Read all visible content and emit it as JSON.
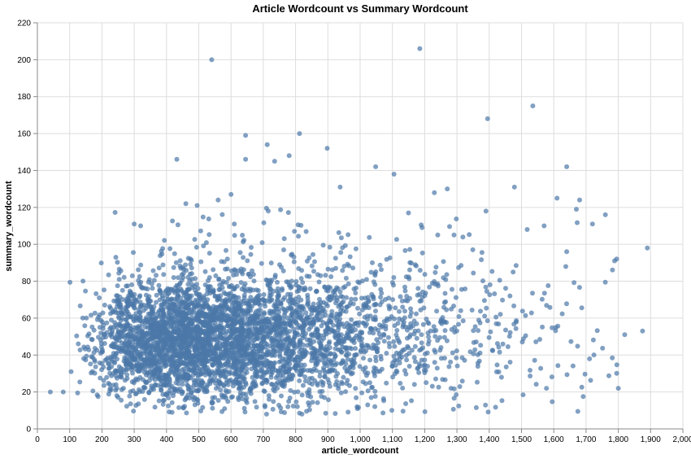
{
  "chart_data": {
    "type": "scatter",
    "title": "Article Wordcount vs Summary Wordcount",
    "xlabel": "article_wordcount",
    "ylabel": "summary_wordcount",
    "xlim": [
      0,
      2000
    ],
    "ylim": [
      0,
      220
    ],
    "x_ticks": [
      0,
      100,
      200,
      300,
      400,
      500,
      600,
      700,
      800,
      900,
      1000,
      1100,
      1200,
      1300,
      1400,
      1500,
      1600,
      1700,
      1800,
      1900,
      2000
    ],
    "x_tick_labels": [
      "0",
      "100",
      "200",
      "300",
      "400",
      "500",
      "600",
      "700",
      "800",
      "900",
      "1,000",
      "1,100",
      "1,200",
      "1,300",
      "1,400",
      "1,500",
      "1,600",
      "1,700",
      "1,800",
      "1,900",
      "2,000"
    ],
    "y_ticks": [
      0,
      20,
      40,
      60,
      80,
      100,
      120,
      140,
      160,
      180,
      200,
      220
    ],
    "y_tick_labels": [
      "0",
      "20",
      "40",
      "60",
      "80",
      "100",
      "120",
      "140",
      "160",
      "180",
      "200",
      "220"
    ],
    "grid": true,
    "point_color": "#4c78a8",
    "point_opacity": 0.7,
    "outliers": [
      {
        "x": 540,
        "y": 200
      },
      {
        "x": 1185,
        "y": 206
      },
      {
        "x": 1535,
        "y": 175
      },
      {
        "x": 1395,
        "y": 168
      },
      {
        "x": 645,
        "y": 159
      },
      {
        "x": 812,
        "y": 160
      },
      {
        "x": 712,
        "y": 154
      },
      {
        "x": 898,
        "y": 152
      },
      {
        "x": 432,
        "y": 146
      },
      {
        "x": 645,
        "y": 146
      },
      {
        "x": 735,
        "y": 145
      },
      {
        "x": 780,
        "y": 148
      },
      {
        "x": 1048,
        "y": 142
      },
      {
        "x": 1640,
        "y": 142
      },
      {
        "x": 1105,
        "y": 138
      },
      {
        "x": 1478,
        "y": 131
      },
      {
        "x": 938,
        "y": 131
      },
      {
        "x": 1890,
        "y": 98
      },
      {
        "x": 1875,
        "y": 53
      },
      {
        "x": 1800,
        "y": 22
      },
      {
        "x": 1795,
        "y": 92
      },
      {
        "x": 1820,
        "y": 51
      },
      {
        "x": 1760,
        "y": 116
      },
      {
        "x": 1680,
        "y": 124
      },
      {
        "x": 1670,
        "y": 119
      },
      {
        "x": 1720,
        "y": 111
      },
      {
        "x": 40,
        "y": 20
      },
      {
        "x": 80,
        "y": 20
      },
      {
        "x": 580,
        "y": 11
      },
      {
        "x": 820,
        "y": 8
      },
      {
        "x": 710,
        "y": 8
      },
      {
        "x": 1610,
        "y": 125
      },
      {
        "x": 1570,
        "y": 110
      },
      {
        "x": 1640,
        "y": 96
      },
      {
        "x": 300,
        "y": 111
      },
      {
        "x": 320,
        "y": 110
      },
      {
        "x": 460,
        "y": 122
      },
      {
        "x": 495,
        "y": 121
      },
      {
        "x": 560,
        "y": 124
      },
      {
        "x": 600,
        "y": 127
      },
      {
        "x": 1230,
        "y": 128
      },
      {
        "x": 1270,
        "y": 130
      },
      {
        "x": 1390,
        "y": 118
      },
      {
        "x": 1150,
        "y": 117
      }
    ],
    "cluster_model": {
      "n_points": 4200,
      "x_center": 580,
      "x_spread": 330,
      "y_center": 48,
      "y_spread_base": 14,
      "y_spread_growth": 0.006,
      "x_min": 60,
      "x_max": 1800,
      "y_min": 8,
      "y_max": 120
    }
  }
}
